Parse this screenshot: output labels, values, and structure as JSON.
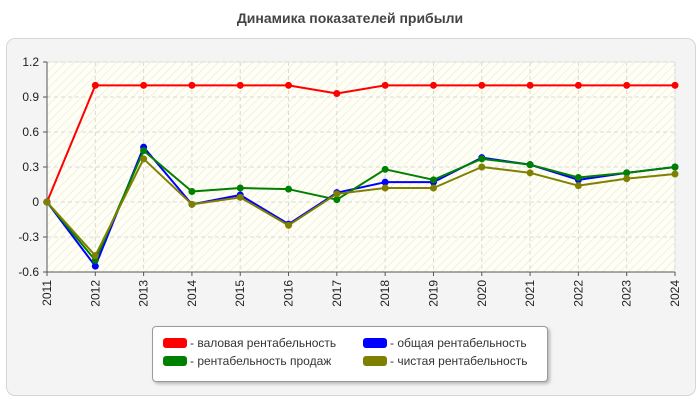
{
  "chart_data": {
    "type": "line",
    "title": "Динамика показателей прибыли",
    "xlabel": "",
    "ylabel": "",
    "x": [
      "2011",
      "2012",
      "2013",
      "2014",
      "2015",
      "2016",
      "2017",
      "2018",
      "2019",
      "2020",
      "2021",
      "2022",
      "2023",
      "2024"
    ],
    "ylim": [
      -0.6,
      1.2
    ],
    "yticks": [
      1.2,
      0.9,
      0.6,
      0.3,
      0,
      -0.3,
      -0.6
    ],
    "ytick_labels": [
      "1.2",
      "0.9",
      "0.6",
      "0.3",
      "0",
      "-0.3",
      "-0.6"
    ],
    "grid": true,
    "legend_position": "bottom",
    "series": [
      {
        "name": "- валовая рентабельность",
        "color": "#ff0000",
        "values": [
          0,
          1.0,
          1.0,
          1.0,
          1.0,
          1.0,
          0.93,
          1.0,
          1.0,
          1.0,
          1.0,
          1.0,
          1.0,
          1.0
        ]
      },
      {
        "name": "- общая рентабельность",
        "color": "#0000ff",
        "values": [
          0,
          -0.55,
          0.47,
          -0.02,
          0.06,
          -0.19,
          0.08,
          0.17,
          0.17,
          0.38,
          0.32,
          0.19,
          0.25,
          0.3
        ]
      },
      {
        "name": "- рентабельность продаж",
        "color": "#008000",
        "values": [
          0,
          -0.5,
          0.44,
          0.09,
          0.12,
          0.11,
          0.02,
          0.28,
          0.19,
          0.37,
          0.32,
          0.21,
          0.25,
          0.3
        ]
      },
      {
        "name": "- чистая рентабельность",
        "color": "#808000",
        "values": [
          0,
          -0.46,
          0.37,
          -0.02,
          0.04,
          -0.2,
          0.07,
          0.12,
          0.12,
          0.3,
          0.25,
          0.14,
          0.2,
          0.24
        ]
      }
    ]
  }
}
